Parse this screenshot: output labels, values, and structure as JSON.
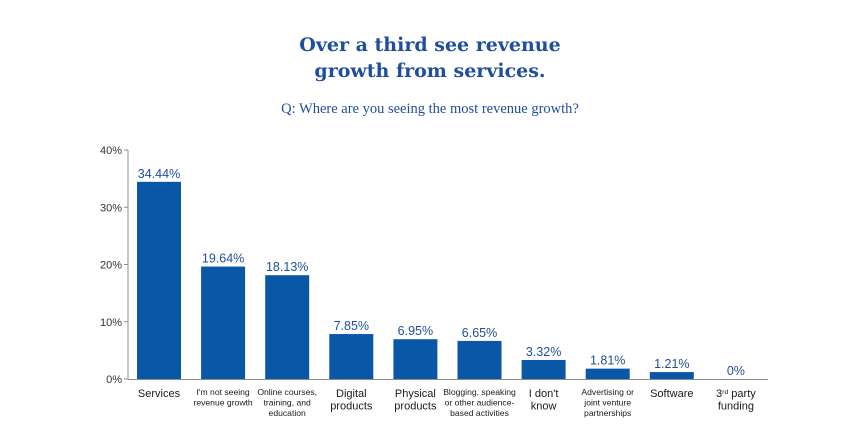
{
  "chart_data": {
    "type": "bar",
    "title_line1": "Over a third see revenue",
    "title_line2": "growth from services.",
    "subtitle": "Q: Where are you seeing the most revenue growth?",
    "xlabel": "",
    "ylabel": "",
    "ylim": [
      0,
      40
    ],
    "yticks": [
      "0%",
      "10%",
      "20%",
      "30%",
      "40%"
    ],
    "grid": false,
    "bar_color": "#0b57a7",
    "label_color": "#1f4e9c",
    "categories": [
      {
        "lines": [
          "Services"
        ],
        "small": false
      },
      {
        "lines": [
          "I'm not seeing",
          "revenue growth"
        ],
        "small": true
      },
      {
        "lines": [
          "Online courses,",
          "training, and",
          "education"
        ],
        "small": true
      },
      {
        "lines": [
          "Digital",
          "products"
        ],
        "small": false
      },
      {
        "lines": [
          "Physical",
          "products"
        ],
        "small": false
      },
      {
        "lines": [
          "Blogging, speaking",
          "or other audience-",
          "based activities"
        ],
        "small": true
      },
      {
        "lines": [
          "I don't",
          "know"
        ],
        "small": false
      },
      {
        "lines": [
          "Advertising or",
          "joint venture",
          "partnerships"
        ],
        "small": true
      },
      {
        "lines": [
          "Software"
        ],
        "small": false
      },
      {
        "lines": [
          "3rd party",
          "funding"
        ],
        "small": false
      }
    ],
    "values": [
      34.44,
      19.64,
      18.13,
      7.85,
      6.95,
      6.65,
      3.32,
      1.81,
      1.21,
      0
    ],
    "value_labels": [
      "34.44%",
      "19.64%",
      "18.13%",
      "7.85%",
      "6.95%",
      "6.65%",
      "3.32%",
      "1.81%",
      "1.21%",
      "0%"
    ]
  }
}
